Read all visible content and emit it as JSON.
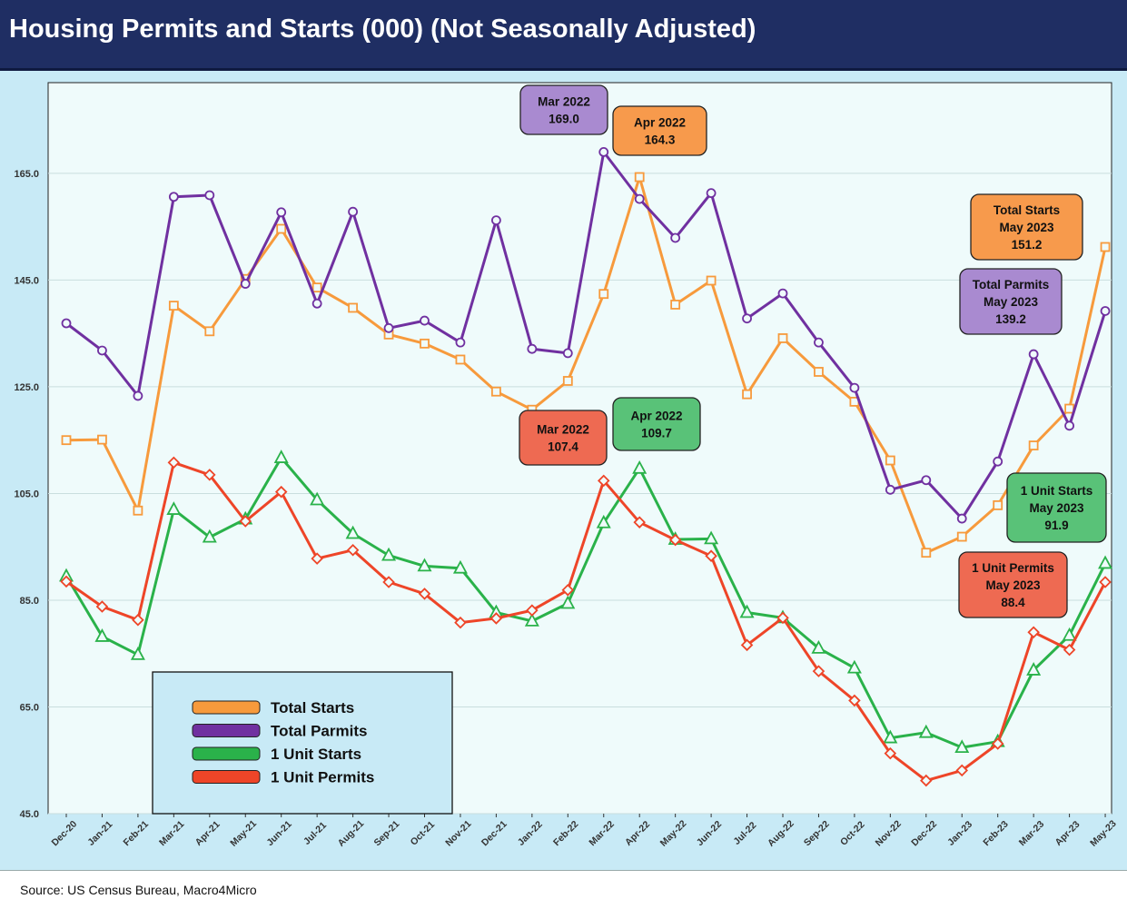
{
  "chart_data": {
    "type": "line",
    "title": "Housing Permits and Starts (000) (Not Seasonally Adjusted)",
    "source": "Source: US Census Bureau, Macro4Micro",
    "ylim": [
      45,
      182
    ],
    "yticks": [
      "45.0",
      "65.0",
      "85.0",
      "105.0",
      "125.0",
      "145.0",
      "165.0"
    ],
    "ytick_values": [
      45,
      65,
      85,
      105,
      125,
      145,
      165
    ],
    "categories": [
      "Dec-20",
      "Jan-21",
      "Feb-21",
      "Mar-21",
      "Apr-21",
      "May-21",
      "Jun-21",
      "Jul-21",
      "Aug-21",
      "Sep-21",
      "Oct-21",
      "Nov-21",
      "Dec-21",
      "Jan-22",
      "Feb-22",
      "Mar-22",
      "Apr-22",
      "May-22",
      "Jun-22",
      "Jul-22",
      "Aug-22",
      "Sep-22",
      "Oct-22",
      "Nov-22",
      "Dec-22",
      "Jan-23",
      "Feb-23",
      "Mar-23",
      "Apr-23",
      "May-23"
    ],
    "series": [
      {
        "name": "Total Starts",
        "color": "#f79a3c",
        "marker": "square",
        "values": [
          115.0,
          115.1,
          101.8,
          140.2,
          135.4,
          145.2,
          154.6,
          143.6,
          139.8,
          134.8,
          133.1,
          130.1,
          124.1,
          120.7,
          126.1,
          142.4,
          164.3,
          140.4,
          144.9,
          123.6,
          134.1,
          127.8,
          122.2,
          111.2,
          93.9,
          96.9,
          102.8,
          114.0,
          120.9,
          151.2
        ]
      },
      {
        "name": "Total Parmits",
        "color": "#7030a0",
        "marker": "circle",
        "values": [
          136.9,
          131.8,
          123.3,
          160.6,
          160.9,
          144.3,
          157.7,
          140.6,
          157.8,
          136.0,
          137.4,
          133.3,
          156.2,
          132.1,
          131.3,
          169.0,
          160.2,
          152.9,
          161.3,
          137.8,
          142.5,
          133.3,
          124.8,
          105.7,
          107.5,
          100.3,
          111.0,
          131.1,
          117.7,
          139.2
        ]
      },
      {
        "name": "1 Unit Starts",
        "color": "#2ab24a",
        "marker": "triangle",
        "values": [
          89.5,
          78.2,
          74.8,
          102.0,
          96.8,
          100.2,
          111.7,
          103.8,
          97.5,
          93.4,
          91.4,
          91.0,
          82.7,
          81.1,
          84.4,
          99.5,
          109.7,
          96.4,
          96.5,
          82.7,
          81.7,
          76.0,
          72.3,
          59.2,
          60.2,
          57.4,
          58.5,
          71.9,
          78.4,
          91.9
        ]
      },
      {
        "name": "1 Unit Permits",
        "color": "#ee4528",
        "marker": "diamond",
        "values": [
          88.5,
          83.8,
          81.3,
          110.8,
          108.5,
          99.8,
          105.3,
          92.8,
          94.4,
          88.4,
          86.2,
          80.8,
          81.6,
          83.1,
          86.9,
          107.4,
          99.6,
          96.3,
          93.3,
          76.6,
          81.7,
          71.7,
          66.2,
          56.3,
          51.2,
          53.1,
          58.1,
          79.0,
          75.7,
          88.4
        ]
      }
    ],
    "legend": {
      "placement": "bottom-left",
      "entries": [
        "Total Starts",
        "Total Parmits",
        "1 Unit Starts",
        "1 Unit Permits"
      ]
    },
    "annotations": [
      {
        "lines": [
          "Mar 2022",
          "169.0"
        ],
        "color": "#a98ad0"
      },
      {
        "lines": [
          "Apr 2022",
          "164.3"
        ],
        "color": "#f79a4c"
      },
      {
        "lines": [
          "Total Starts",
          "May 2023",
          "151.2"
        ],
        "color": "#f79a4c"
      },
      {
        "lines": [
          "Total Parmits",
          "May 2023",
          "139.2"
        ],
        "color": "#a98ad0"
      },
      {
        "lines": [
          "Mar 2022",
          "107.4"
        ],
        "color": "#ee6a52"
      },
      {
        "lines": [
          "Apr 2022",
          "109.7"
        ],
        "color": "#59c278"
      },
      {
        "lines": [
          "1 Unit Starts",
          "May 2023",
          "91.9"
        ],
        "color": "#59c278"
      },
      {
        "lines": [
          "1 Unit Permits",
          "May 2023",
          "88.4"
        ],
        "color": "#ee6a52"
      }
    ]
  }
}
